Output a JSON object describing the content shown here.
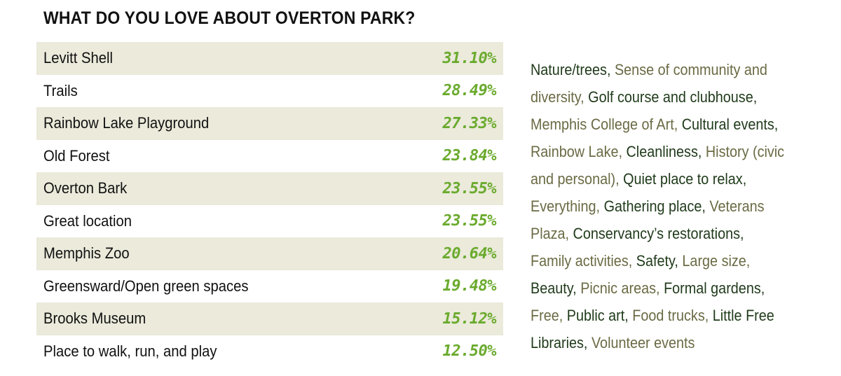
{
  "title": "WHAT DO YOU LOVE ABOUT OVERTON PARK?",
  "table": {
    "rows": [
      {
        "label": "Levitt Shell",
        "value": "31.10%"
      },
      {
        "label": "Trails",
        "value": "28.49%"
      },
      {
        "label": "Rainbow Lake Playground",
        "value": "27.33%"
      },
      {
        "label": "Old Forest",
        "value": "23.84%"
      },
      {
        "label": "Overton Bark",
        "value": "23.55%"
      },
      {
        "label": "Great location",
        "value": "23.55%"
      },
      {
        "label": "Memphis Zoo",
        "value": "20.64%"
      },
      {
        "label": "Greensward/Open green spaces",
        "value": "19.48%"
      },
      {
        "label": "Brooks Museum",
        "value": "15.12%"
      },
      {
        "label": "Place to walk, run, and play",
        "value": "12.50%"
      }
    ]
  },
  "other_responses": {
    "lines": [
      [
        {
          "t": "Nature/trees,",
          "c": "dark"
        },
        {
          "t": "Sense of community and",
          "c": "olive"
        }
      ],
      [
        {
          "t": "diversity,",
          "c": "olive"
        },
        {
          "t": "Golf course and clubhouse,",
          "c": "dark"
        }
      ],
      [
        {
          "t": "Memphis College of Art,",
          "c": "olive"
        },
        {
          "t": "Cultural events,",
          "c": "dark"
        }
      ],
      [
        {
          "t": "Rainbow Lake,",
          "c": "olive"
        },
        {
          "t": "Cleanliness,",
          "c": "dark"
        },
        {
          "t": "History (civic",
          "c": "olive"
        }
      ],
      [
        {
          "t": "and personal),",
          "c": "olive"
        },
        {
          "t": "Quiet place to relax,",
          "c": "dark"
        }
      ],
      [
        {
          "t": "Everything,",
          "c": "olive"
        },
        {
          "t": "Gathering place,",
          "c": "dark"
        },
        {
          "t": "Veterans",
          "c": "olive"
        }
      ],
      [
        {
          "t": "Plaza,",
          "c": "olive"
        },
        {
          "t": "Conservancy’s restorations,",
          "c": "dark"
        }
      ],
      [
        {
          "t": "Family activities,",
          "c": "olive"
        },
        {
          "t": "Safety,",
          "c": "dark"
        },
        {
          "t": "Large size,",
          "c": "olive"
        }
      ],
      [
        {
          "t": "Beauty,",
          "c": "dark"
        },
        {
          "t": "Picnic areas,",
          "c": "olive"
        },
        {
          "t": "Formal gardens,",
          "c": "dark"
        }
      ],
      [
        {
          "t": "Free,",
          "c": "olive"
        },
        {
          "t": "Public art,",
          "c": "dark"
        },
        {
          "t": "Food trucks,",
          "c": "olive"
        },
        {
          "t": "Little Free",
          "c": "dark"
        }
      ],
      [
        {
          "t": "Libraries,",
          "c": "dark"
        },
        {
          "t": "Volunteer events",
          "c": "olive"
        }
      ]
    ]
  }
}
